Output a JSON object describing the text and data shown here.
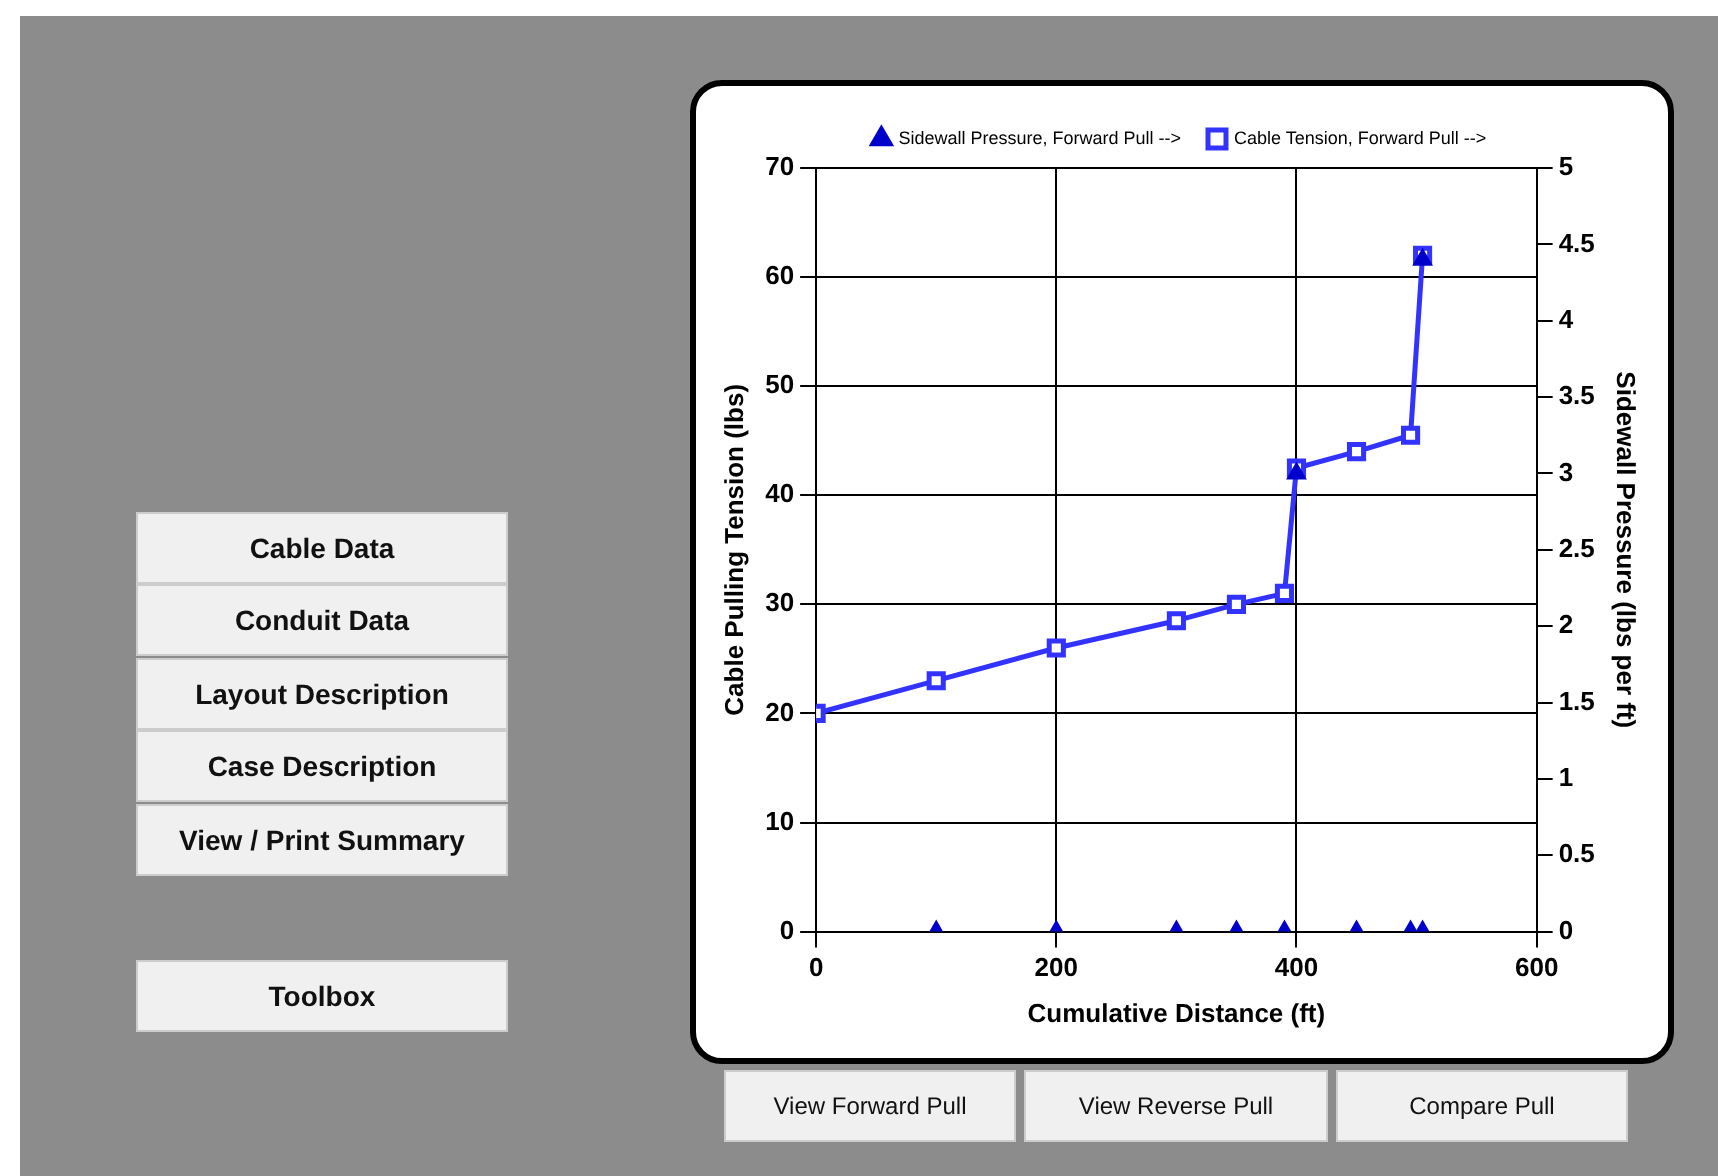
{
  "chart_data": {
    "type": "line",
    "xlabel": "Cumulative Distance (ft)",
    "ylabel": "Cable Pulling Tension (lbs)",
    "y2label": "Sidewall Pressure (lbs per ft)",
    "xlim": [
      0,
      600
    ],
    "xticks": [
      0,
      200,
      400,
      600
    ],
    "ylim": [
      0,
      70
    ],
    "yticks": [
      0,
      10,
      20,
      30,
      40,
      50,
      60,
      70
    ],
    "y2lim": [
      0,
      5
    ],
    "y2ticks": [
      0,
      0.5,
      1,
      1.5,
      2,
      2.5,
      3,
      3.5,
      4,
      4.5,
      5
    ],
    "grid": true,
    "legend": "top",
    "series": [
      {
        "name": "Cable Tension, Forward Pull -->",
        "type": "line",
        "color": "#3333ff",
        "marker": "square",
        "x": [
          0,
          100,
          200,
          300,
          350,
          390,
          400,
          450,
          495,
          505
        ],
        "values": [
          20,
          23,
          26,
          28.5,
          30,
          31,
          42.5,
          44,
          45.5,
          62
        ]
      },
      {
        "name": "Sidewall Pressure, Forward Pull -->",
        "type": "scatter",
        "axis": "y2",
        "color": "#0000cc",
        "marker": "triangle",
        "x": [
          100,
          200,
          300,
          350,
          390,
          400,
          450,
          495,
          505,
          505
        ],
        "values": [
          0,
          0,
          0,
          0,
          0,
          3,
          0,
          0,
          0,
          4.4
        ]
      }
    ],
    "annotations": [
      "Cable Data",
      "Conduit Data",
      "Layout Description",
      "Case Description",
      "View / Print Summary",
      "Toolbox",
      "View Forward Pull",
      "View Reverse Pull",
      "Compare Pull"
    ]
  }
}
